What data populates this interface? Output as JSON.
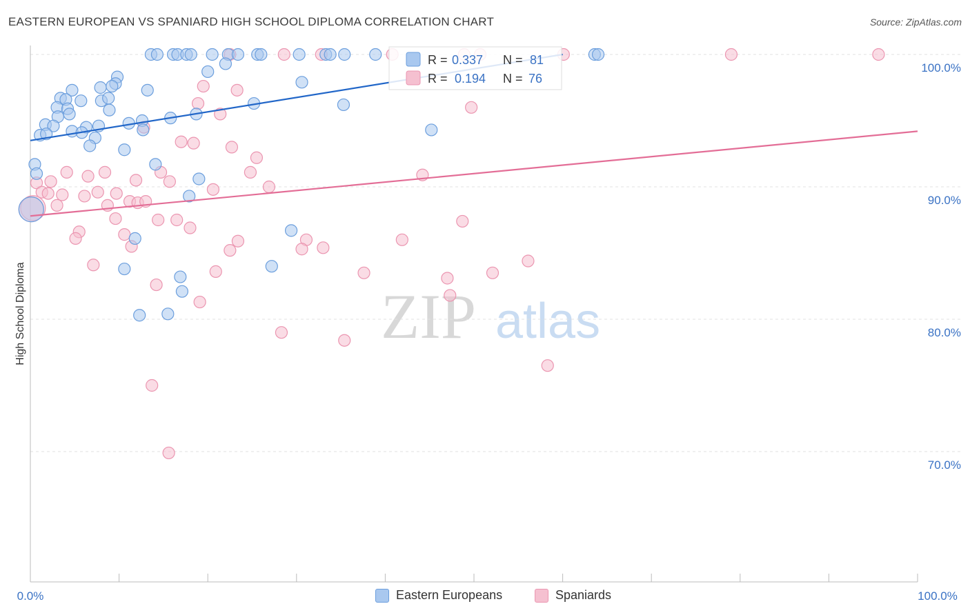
{
  "title": "EASTERN EUROPEAN VS SPANIARD HIGH SCHOOL DIPLOMA CORRELATION CHART",
  "source": "Source: ZipAtlas.com",
  "watermark": {
    "zip": "ZIP",
    "atlas": "atlas"
  },
  "colors": {
    "blue_fill": "#a9c8ef",
    "blue_stroke": "#6b9edd",
    "blue_line": "#2166c8",
    "pink_fill": "#f5c0d0",
    "pink_stroke": "#eb95b0",
    "pink_line": "#e36d96",
    "tick_label": "#3a72c4"
  },
  "legend": {
    "rows": [
      {
        "r_label": "R = ",
        "r_value": "0.337",
        "n_label": "N = ",
        "n_value": "81"
      },
      {
        "r_label": "R = ",
        "r_value": "0.194",
        "n_label": "N = ",
        "n_value": "76"
      }
    ],
    "bottom": [
      "Eastern Europeans",
      "Spaniards"
    ]
  },
  "chart_data": {
    "type": "scatter",
    "title": "EASTERN EUROPEAN VS SPANIARD HIGH SCHOOL DIPLOMA CORRELATION CHART",
    "xlabel": "",
    "ylabel": "High School Diploma",
    "xlim": [
      0,
      100
    ],
    "ylim": [
      60,
      100
    ],
    "x_tick_labels": [
      "0.0%",
      "100.0%"
    ],
    "y_ticks": [
      70,
      80,
      90,
      100
    ],
    "y_tick_labels": [
      "70.0%",
      "80.0%",
      "90.0%",
      "100.0%"
    ],
    "grid": "horizontal dashed",
    "legend_position": "top-center",
    "series": [
      {
        "name": "Eastern Europeans",
        "r": 0.337,
        "n": 81,
        "trend": {
          "x": [
            0,
            60
          ],
          "y": [
            93.5,
            100
          ]
        },
        "points": [
          [
            13.6,
            100
          ],
          [
            14.3,
            100
          ],
          [
            16.1,
            100
          ],
          [
            16.6,
            100
          ],
          [
            17.6,
            100
          ],
          [
            18.1,
            100
          ],
          [
            20.5,
            100
          ],
          [
            22.3,
            100
          ],
          [
            23.4,
            100
          ],
          [
            25.6,
            100
          ],
          [
            26.0,
            100
          ],
          [
            30.3,
            100
          ],
          [
            33.3,
            100
          ],
          [
            33.8,
            100
          ],
          [
            35.4,
            100
          ],
          [
            38.9,
            100
          ],
          [
            63.6,
            100
          ],
          [
            64.0,
            100
          ],
          [
            22.0,
            99.3
          ],
          [
            20.0,
            98.7
          ],
          [
            9.8,
            98.3
          ],
          [
            30.6,
            97.9
          ],
          [
            9.6,
            97.8
          ],
          [
            7.9,
            97.5
          ],
          [
            9.2,
            97.6
          ],
          [
            13.2,
            97.3
          ],
          [
            4.7,
            97.3
          ],
          [
            3.4,
            96.7
          ],
          [
            5.7,
            96.5
          ],
          [
            8.0,
            96.5
          ],
          [
            4.0,
            96.6
          ],
          [
            8.8,
            96.7
          ],
          [
            25.2,
            96.3
          ],
          [
            35.3,
            96.2
          ],
          [
            3.0,
            96.0
          ],
          [
            4.2,
            95.9
          ],
          [
            8.9,
            95.8
          ],
          [
            3.1,
            95.3
          ],
          [
            4.4,
            95.5
          ],
          [
            18.7,
            95.5
          ],
          [
            15.8,
            95.2
          ],
          [
            12.6,
            95.0
          ],
          [
            11.1,
            94.8
          ],
          [
            1.7,
            94.7
          ],
          [
            2.6,
            94.6
          ],
          [
            6.3,
            94.5
          ],
          [
            7.7,
            94.6
          ],
          [
            12.7,
            94.3
          ],
          [
            45.2,
            94.3
          ],
          [
            4.7,
            94.2
          ],
          [
            5.8,
            94.1
          ],
          [
            1.1,
            93.9
          ],
          [
            1.8,
            94.0
          ],
          [
            7.3,
            93.7
          ],
          [
            6.7,
            93.1
          ],
          [
            10.6,
            92.8
          ],
          [
            0.5,
            91.7
          ],
          [
            0.7,
            91.0
          ],
          [
            14.1,
            91.7
          ],
          [
            19.0,
            90.6
          ],
          [
            17.9,
            89.3
          ],
          [
            29.4,
            86.7
          ],
          [
            11.8,
            86.1
          ],
          [
            27.2,
            84.0
          ],
          [
            10.6,
            83.8
          ],
          [
            16.9,
            83.2
          ],
          [
            17.1,
            82.1
          ],
          [
            12.3,
            80.3
          ],
          [
            15.5,
            80.4
          ],
          [
            0.1,
            88.3
          ]
        ]
      },
      {
        "name": "Spaniards",
        "r": 0.194,
        "n": 76,
        "trend": {
          "x": [
            0,
            100
          ],
          "y": [
            87.8,
            94.2
          ]
        },
        "points": [
          [
            22.5,
            100
          ],
          [
            28.6,
            100
          ],
          [
            32.8,
            100
          ],
          [
            40.8,
            100
          ],
          [
            60.1,
            100
          ],
          [
            79.0,
            100
          ],
          [
            95.6,
            100
          ],
          [
            48.9,
            100
          ],
          [
            50.7,
            100
          ],
          [
            19.5,
            97.6
          ],
          [
            23.3,
            97.3
          ],
          [
            18.9,
            96.3
          ],
          [
            49.7,
            96.0
          ],
          [
            21.4,
            95.5
          ],
          [
            12.8,
            94.5
          ],
          [
            17.0,
            93.4
          ],
          [
            18.4,
            93.3
          ],
          [
            22.7,
            93.0
          ],
          [
            25.5,
            92.2
          ],
          [
            4.1,
            91.1
          ],
          [
            8.4,
            91.1
          ],
          [
            14.7,
            91.1
          ],
          [
            24.8,
            91.1
          ],
          [
            44.2,
            90.9
          ],
          [
            6.5,
            90.8
          ],
          [
            11.9,
            90.5
          ],
          [
            15.7,
            90.4
          ],
          [
            2.3,
            90.4
          ],
          [
            0.7,
            90.3
          ],
          [
            26.9,
            90.0
          ],
          [
            20.6,
            89.8
          ],
          [
            1.3,
            89.6
          ],
          [
            2.0,
            89.5
          ],
          [
            3.6,
            89.4
          ],
          [
            6.1,
            89.3
          ],
          [
            7.6,
            89.6
          ],
          [
            9.7,
            89.5
          ],
          [
            11.2,
            88.9
          ],
          [
            12.1,
            88.8
          ],
          [
            13.0,
            88.9
          ],
          [
            3.0,
            88.6
          ],
          [
            8.7,
            88.6
          ],
          [
            0.3,
            88.4
          ],
          [
            9.6,
            87.6
          ],
          [
            14.4,
            87.5
          ],
          [
            16.5,
            87.5
          ],
          [
            48.7,
            87.4
          ],
          [
            18.0,
            86.9
          ],
          [
            5.5,
            86.6
          ],
          [
            10.6,
            86.4
          ],
          [
            5.1,
            86.1
          ],
          [
            23.4,
            85.9
          ],
          [
            31.1,
            86.0
          ],
          [
            41.9,
            86.0
          ],
          [
            11.4,
            85.5
          ],
          [
            22.5,
            85.2
          ],
          [
            30.6,
            85.3
          ],
          [
            33.0,
            85.4
          ],
          [
            7.1,
            84.1
          ],
          [
            56.1,
            84.4
          ],
          [
            20.9,
            83.6
          ],
          [
            37.6,
            83.5
          ],
          [
            52.1,
            83.5
          ],
          [
            47.0,
            83.1
          ],
          [
            14.2,
            82.6
          ],
          [
            47.3,
            81.8
          ],
          [
            19.1,
            81.3
          ],
          [
            28.3,
            79.0
          ],
          [
            35.4,
            78.4
          ],
          [
            58.3,
            76.5
          ],
          [
            13.7,
            75.0
          ],
          [
            15.6,
            69.9
          ],
          [
            0.1,
            88.3
          ]
        ]
      }
    ]
  }
}
